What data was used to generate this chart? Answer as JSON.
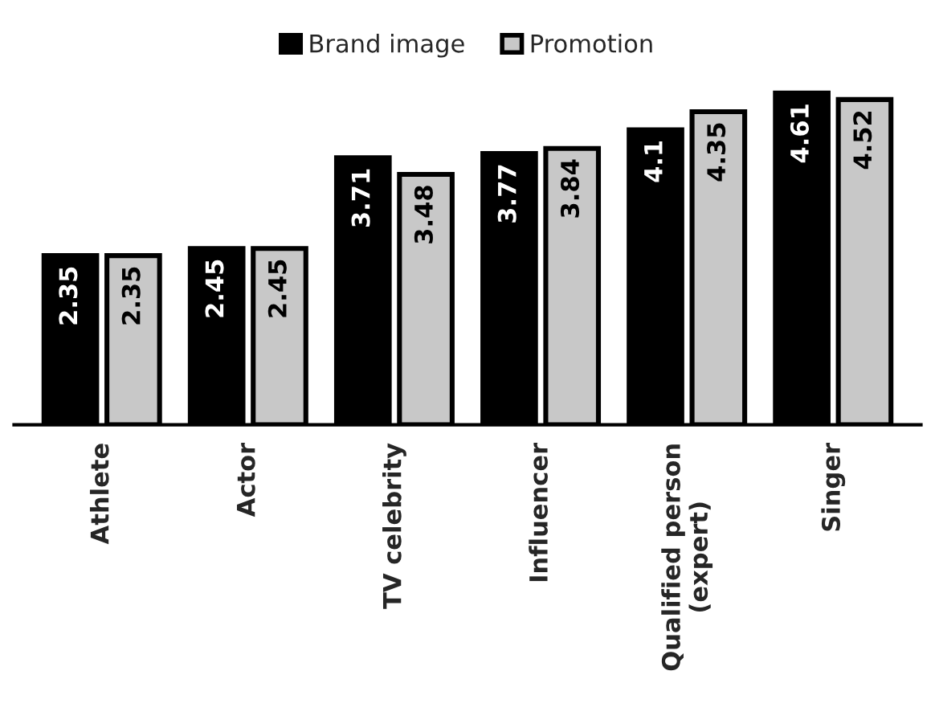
{
  "chart_data": {
    "type": "bar",
    "categories": [
      "Athlete",
      "Actor",
      "TV celebrity",
      "Influencer",
      "Qualified person\n(expert)",
      "Singer"
    ],
    "series": [
      {
        "name": "Brand image",
        "color": "#000000",
        "values": [
          2.35,
          2.45,
          3.71,
          3.77,
          4.1,
          4.61
        ]
      },
      {
        "name": "Promotion",
        "color": "#c8c8c8",
        "values": [
          2.35,
          2.45,
          3.48,
          3.84,
          4.35,
          4.52
        ]
      }
    ],
    "data_labels": true,
    "legend": "top",
    "grid": false
  }
}
